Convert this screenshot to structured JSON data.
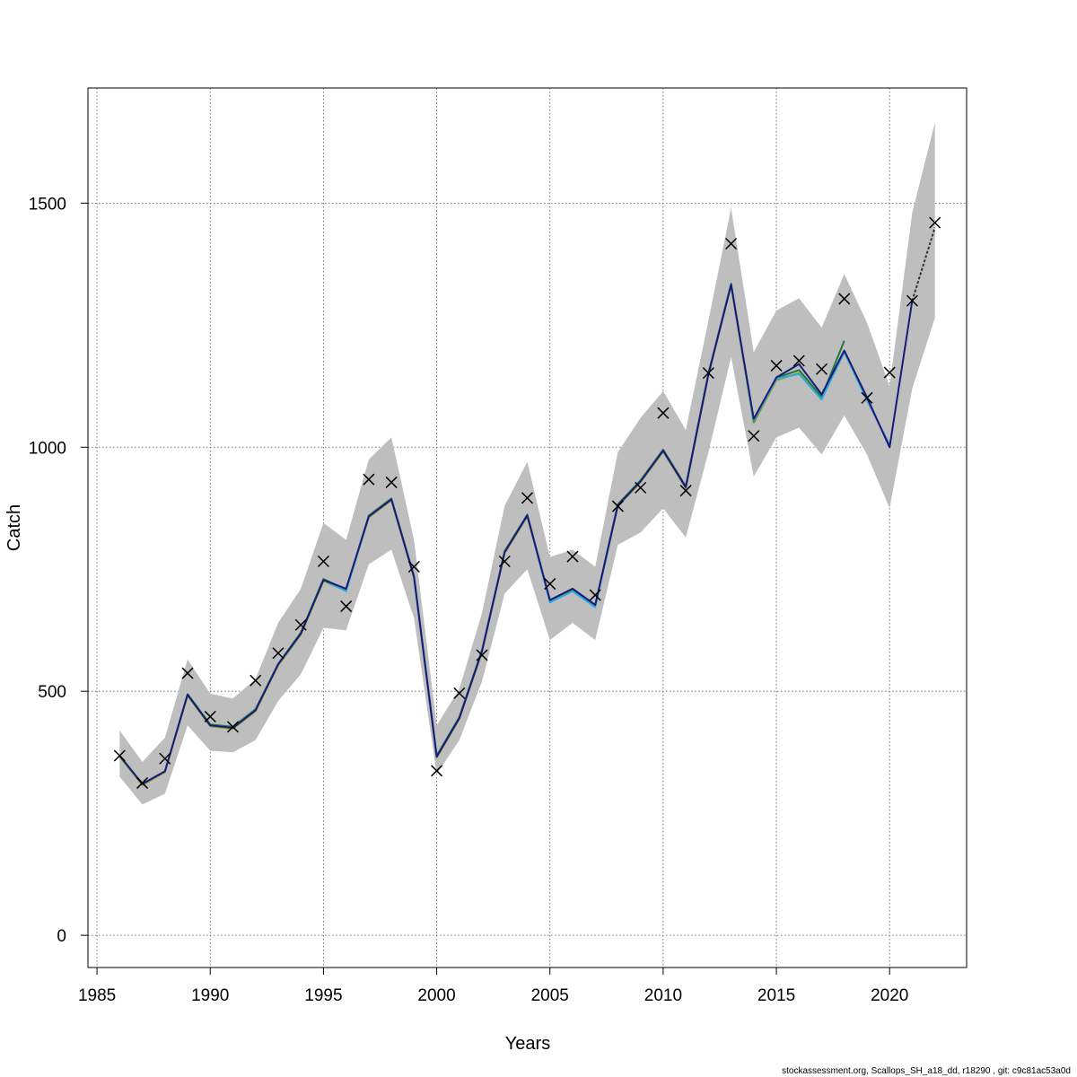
{
  "chart_data": {
    "type": "line",
    "xlabel": "Years",
    "ylabel": "Catch",
    "xlim": [
      1984.6,
      2023.4
    ],
    "ylim": [
      -66,
      1736
    ],
    "x_ticks": [
      1985,
      1990,
      1995,
      2000,
      2005,
      2010,
      2015,
      2020
    ],
    "y_ticks": [
      0,
      500,
      1000,
      1500
    ],
    "grid": true,
    "footer": "stockassessment.org, Scallops_SH_a18_dd, r18290 , git: c9c81ac53a0d",
    "band": {
      "color": "#bebebe",
      "x": [
        1986,
        1987,
        1988,
        1989,
        1990,
        1991,
        1992,
        1993,
        1994,
        1995,
        1996,
        1997,
        1998,
        1999,
        2000,
        2001,
        2002,
        2003,
        2004,
        2005,
        2006,
        2007,
        2008,
        2009,
        2010,
        2011,
        2012,
        2013,
        2014,
        2015,
        2016,
        2017,
        2018,
        2019,
        2020,
        2021,
        2022
      ],
      "lower": [
        325,
        268,
        290,
        430,
        378,
        375,
        400,
        480,
        535,
        630,
        625,
        760,
        790,
        650,
        330,
        400,
        520,
        700,
        750,
        605,
        640,
        605,
        800,
        825,
        875,
        815,
        990,
        1185,
        940,
        1020,
        1040,
        985,
        1065,
        985,
        875,
        1120,
        1265
      ],
      "upper": [
        420,
        355,
        405,
        565,
        495,
        485,
        525,
        640,
        710,
        845,
        810,
        975,
        1020,
        810,
        430,
        505,
        660,
        880,
        970,
        775,
        790,
        755,
        990,
        1060,
        1115,
        1035,
        1260,
        1490,
        1195,
        1280,
        1305,
        1245,
        1355,
        1255,
        1125,
        1480,
        1665
      ]
    },
    "series": [
      {
        "color": "#1a1a78",
        "x": [
          1986,
          1987,
          1988,
          1989,
          1990,
          1991,
          1992,
          1993,
          1994,
          1995,
          1996,
          1997,
          1998,
          1999,
          2000,
          2001,
          2002,
          2003,
          2004,
          2005,
          2006,
          2007,
          2008,
          2009,
          2010,
          2011,
          2012,
          2013,
          2014,
          2015,
          2016,
          2017,
          2018,
          2019,
          2020,
          2021
        ],
        "values": [
          368,
          310,
          336,
          493,
          430,
          425,
          461,
          555,
          618,
          728,
          710,
          858,
          893,
          734,
          366,
          445,
          582,
          785,
          860,
          687,
          710,
          677,
          881,
          930,
          993,
          918,
          1150,
          1333,
          1058,
          1143,
          1170,
          1108,
          1198,
          1102,
          1000,
          1300
        ]
      },
      {
        "color": "#29a9e0",
        "x": [
          1986,
          1987,
          1988,
          1989,
          1990,
          1991,
          1992,
          1993,
          1994,
          1995,
          1996,
          1997,
          1998,
          1999,
          2000,
          2001,
          2002,
          2003,
          2004,
          2005,
          2006,
          2007,
          2008,
          2009,
          2010,
          2011,
          2012,
          2013,
          2014,
          2015,
          2016,
          2017,
          2018,
          2019,
          2020
        ],
        "values": [
          368,
          310,
          336,
          493,
          430,
          425,
          461,
          555,
          618,
          728,
          705,
          858,
          893,
          734,
          366,
          445,
          582,
          785,
          860,
          682,
          705,
          672,
          881,
          930,
          993,
          918,
          1150,
          1333,
          1055,
          1140,
          1150,
          1098,
          1195,
          1096,
          1005
        ]
      },
      {
        "color": "#1f7a3a",
        "x": [
          1986,
          1987,
          1988,
          1989,
          1990,
          1991,
          1992,
          1993,
          1994,
          1995,
          1996,
          1997,
          1998,
          1999,
          2000,
          2001,
          2002,
          2003,
          2004,
          2005,
          2006,
          2007,
          2008,
          2009,
          2010,
          2011,
          2012,
          2013,
          2014,
          2015,
          2016,
          2017,
          2018
        ],
        "values": [
          368,
          310,
          336,
          494,
          432,
          427,
          463,
          556,
          620,
          730,
          708,
          860,
          895,
          736,
          368,
          447,
          584,
          787,
          862,
          686,
          710,
          676,
          883,
          932,
          995,
          920,
          1152,
          1335,
          1053,
          1142,
          1158,
          1103,
          1218
        ]
      },
      {
        "color": "#9aa020",
        "x": [
          1986,
          1987,
          1988,
          1989,
          1990,
          1991,
          1992,
          1993,
          1994,
          1995,
          1996,
          1997,
          1998,
          1999,
          2000,
          2001,
          2002,
          2003,
          2004,
          2005,
          2006,
          2007,
          2008,
          2009,
          2010,
          2011,
          2012,
          2013,
          2014,
          2015,
          2016,
          2017
        ],
        "values": [
          366,
          308,
          334,
          491,
          428,
          423,
          459,
          553,
          616,
          726,
          706,
          856,
          891,
          732,
          364,
          443,
          580,
          783,
          858,
          684,
          708,
          674,
          879,
          928,
          991,
          916,
          1148,
          1331,
          1050,
          1137,
          1152,
          1097
        ]
      }
    ],
    "projection": {
      "color": "#333333",
      "x": [
        2021,
        2022
      ],
      "values": [
        1300,
        1450
      ]
    },
    "observed": {
      "x": [
        1986,
        1987,
        1988,
        1989,
        1990,
        1991,
        1992,
        1993,
        1994,
        1995,
        1996,
        1997,
        1998,
        1999,
        2000,
        2001,
        2002,
        2003,
        2004,
        2005,
        2006,
        2007,
        2008,
        2009,
        2010,
        2011,
        2012,
        2013,
        2014,
        2015,
        2016,
        2017,
        2018,
        2019,
        2020,
        2021,
        2022
      ],
      "values": [
        368,
        312,
        362,
        537,
        448,
        427,
        522,
        578,
        636,
        766,
        674,
        934,
        928,
        755,
        337,
        496,
        574,
        766,
        896,
        720,
        776,
        697,
        879,
        917,
        1070,
        911,
        1152,
        1417,
        1023,
        1167,
        1177,
        1160,
        1304,
        1101,
        1153,
        1300,
        1460
      ]
    }
  }
}
